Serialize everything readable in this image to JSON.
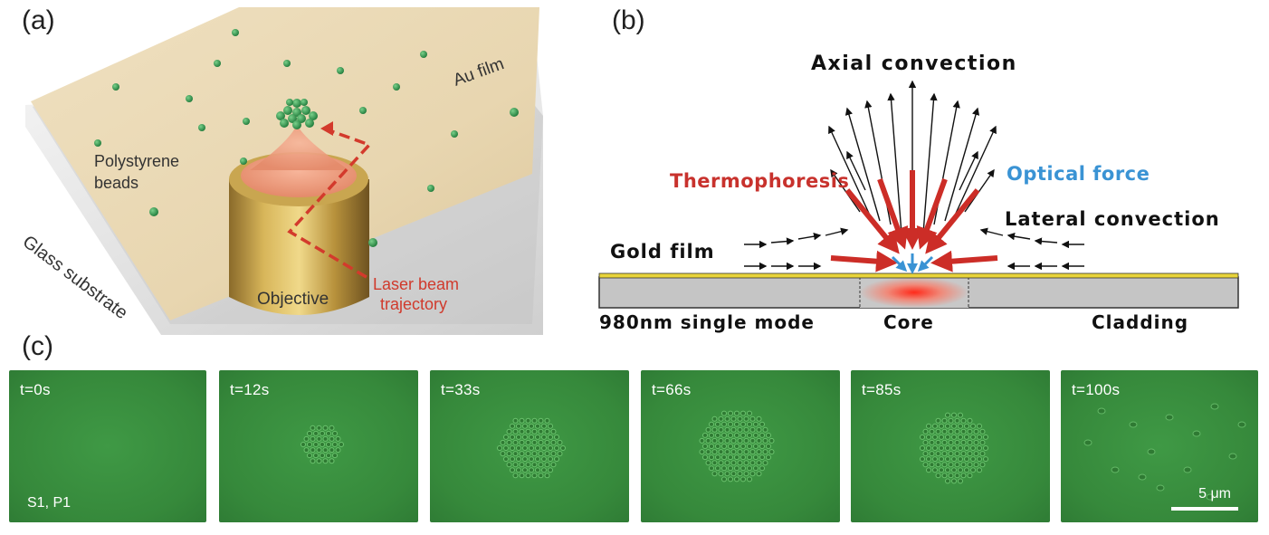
{
  "panels": {
    "a": {
      "label": "(a)",
      "texts": {
        "au_film": "Au film",
        "beads_line1": "Polystyrene",
        "beads_line2": "beads",
        "glass": "Glass substrate",
        "objective": "Objective",
        "laser_line1": "Laser beam",
        "laser_line2": "trajectory"
      }
    },
    "b": {
      "label": "(b)",
      "texts": {
        "axial": "Axial convection",
        "thermophoresis": "Thermophoresis",
        "optical": "Optical force",
        "lateral": "Lateral convection",
        "gold": "Gold film",
        "fiber": "980nm single mode",
        "core": "Core",
        "cladding": "Cladding"
      }
    },
    "c": {
      "label": "(c)",
      "sample": "S1, P1",
      "scale": "5 μm",
      "frames": [
        {
          "time": "t=0s"
        },
        {
          "time": "t=12s"
        },
        {
          "time": "t=33s"
        },
        {
          "time": "t=66s"
        },
        {
          "time": "t=85s"
        },
        {
          "time": "t=100s"
        }
      ]
    }
  },
  "colors": {
    "thermophoresis": "#c8322d",
    "optical": "#3a93d4",
    "frame_green": "#38893c",
    "gold": "#e8d43a"
  }
}
